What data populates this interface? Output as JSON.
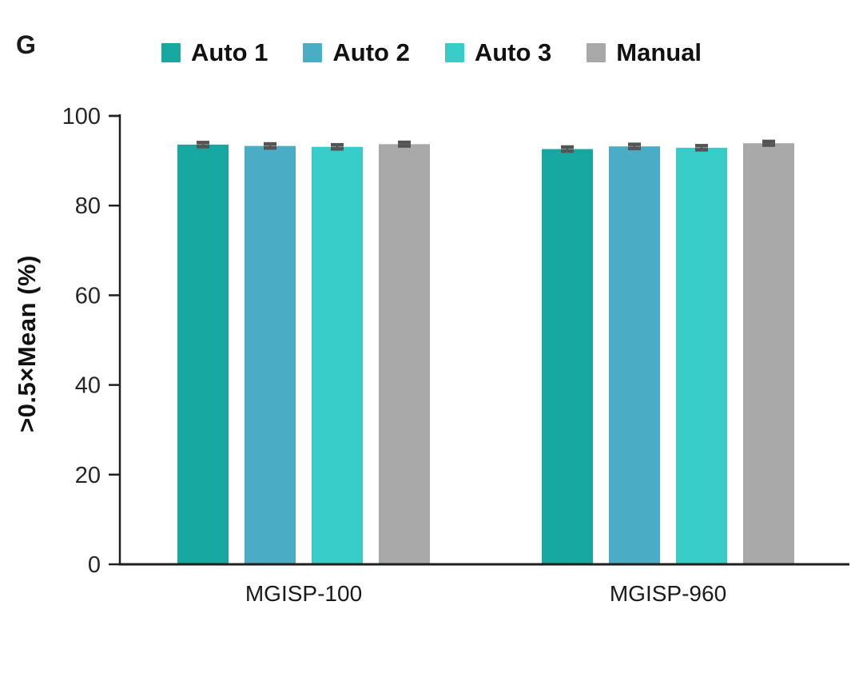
{
  "panel_label": "G",
  "chart_data": {
    "type": "bar",
    "title": "",
    "xlabel": "",
    "ylabel": ">0.5×Mean (%)",
    "categories": [
      "MGISP-100",
      "MGISP-960"
    ],
    "series": [
      {
        "name": "Auto 1",
        "color": "#16A8A0",
        "values": [
          93.6,
          92.6
        ],
        "errors": [
          0.45,
          0.45
        ]
      },
      {
        "name": "Auto 2",
        "color": "#4BACC6",
        "values": [
          93.3,
          93.2
        ],
        "errors": [
          0.45,
          0.45
        ]
      },
      {
        "name": "Auto 3",
        "color": "#38CCC9",
        "values": [
          93.1,
          92.9
        ],
        "errors": [
          0.45,
          0.45
        ]
      },
      {
        "name": "Manual",
        "color": "#A8A8A8",
        "values": [
          93.7,
          93.9
        ],
        "errors": [
          0.4,
          0.4
        ]
      }
    ],
    "ylim": [
      0,
      100
    ],
    "yticks": [
      0,
      20,
      40,
      60,
      80,
      100
    ],
    "grid": "off",
    "legend_position": "top",
    "axis_color": "#1f1f1f",
    "tick_label_color": "#262626",
    "category_label_color": "#1a1a1a",
    "error_bar_color": "#545454"
  }
}
